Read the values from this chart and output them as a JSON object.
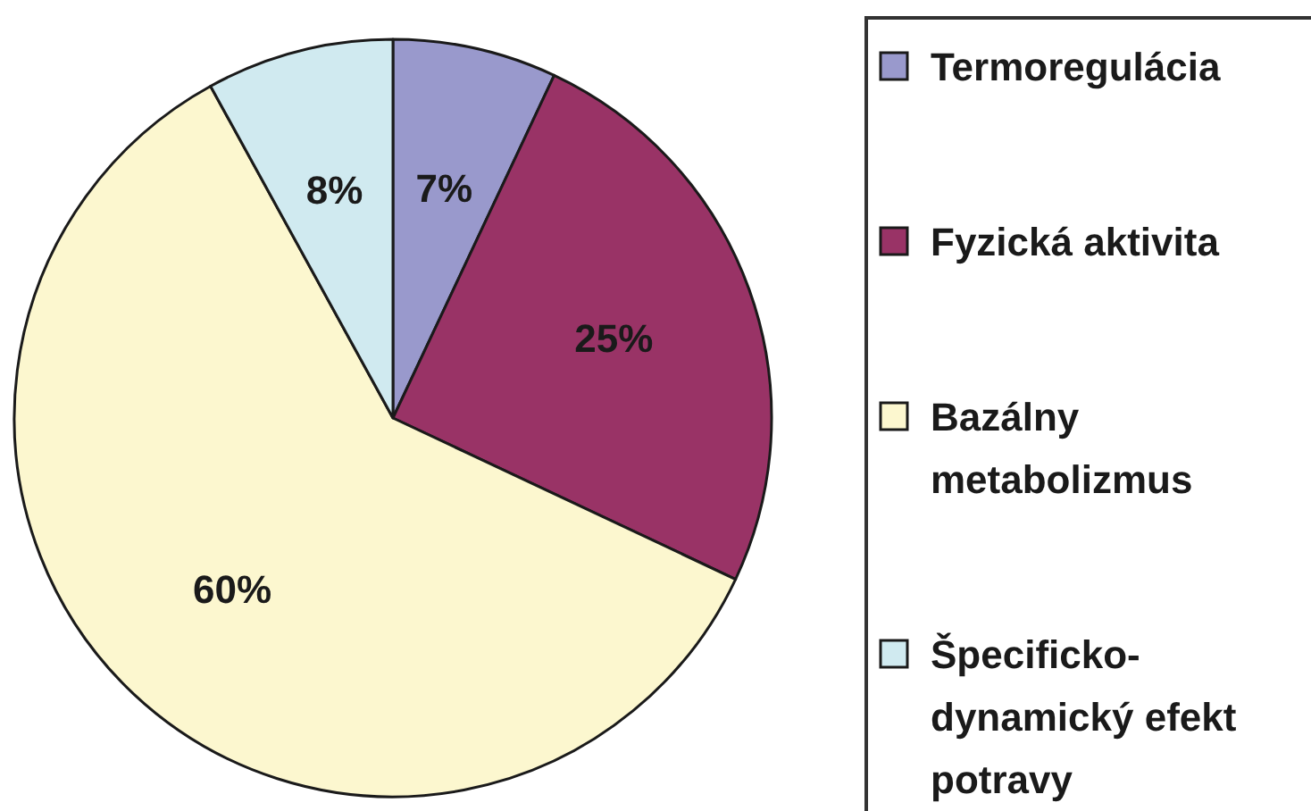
{
  "chart_data": {
    "type": "pie",
    "categories": [
      "Termoregulácia",
      "Fyzická aktivita",
      "Bazálny metabolizmus",
      "Špecificko-dynamický efekt potravy"
    ],
    "values": [
      7,
      25,
      60,
      8
    ],
    "colors": [
      "#9999cc",
      "#993366",
      "#fcf7cf",
      "#d0eaf0"
    ],
    "value_labels": [
      "7%",
      "25%",
      "60%",
      "8%"
    ],
    "legend": "right"
  }
}
